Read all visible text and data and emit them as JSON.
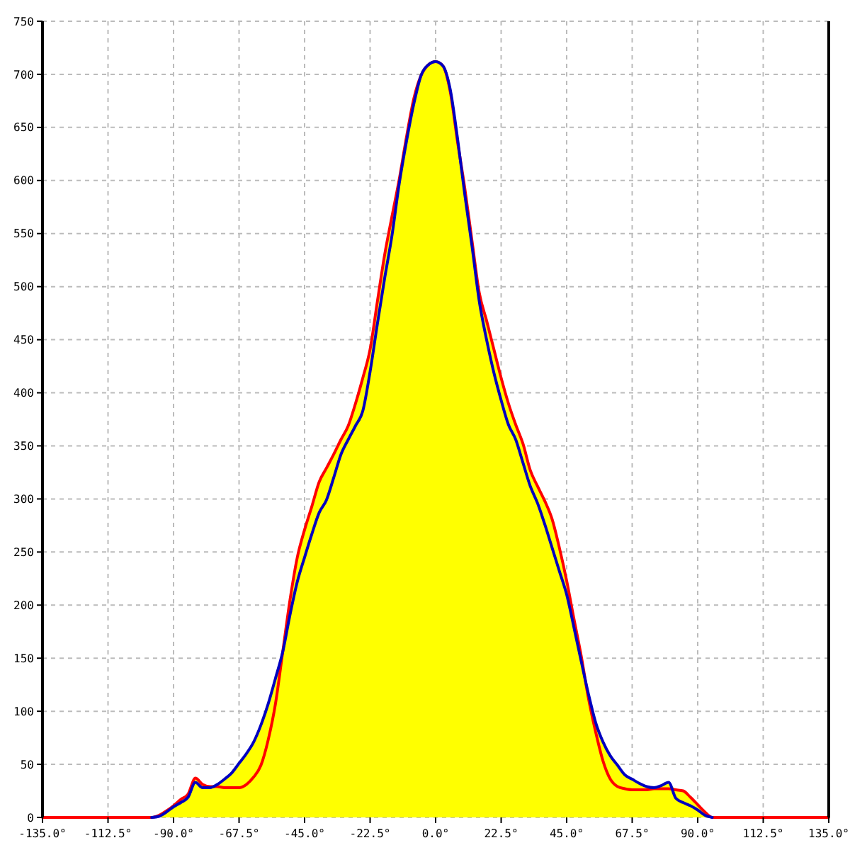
{
  "chart_data": {
    "type": "line",
    "xlim": [
      -135,
      135
    ],
    "ylim": [
      0,
      750
    ],
    "xticks": [
      {
        "value": -135,
        "label": "-135.0°"
      },
      {
        "value": -112.5,
        "label": "-112.5°"
      },
      {
        "value": -90,
        "label": "-90.0°"
      },
      {
        "value": -67.5,
        "label": "-67.5°"
      },
      {
        "value": -45,
        "label": "-45.0°"
      },
      {
        "value": -22.5,
        "label": "-22.5°"
      },
      {
        "value": 0,
        "label": "0.0°"
      },
      {
        "value": 22.5,
        "label": "22.5°"
      },
      {
        "value": 45,
        "label": "45.0°"
      },
      {
        "value": 67.5,
        "label": "67.5°"
      },
      {
        "value": 90,
        "label": "90.0°"
      },
      {
        "value": 112.5,
        "label": "112.5°"
      },
      {
        "value": 135,
        "label": "135.0°"
      }
    ],
    "yticks": [
      0,
      50,
      100,
      150,
      200,
      250,
      300,
      350,
      400,
      450,
      500,
      550,
      600,
      650,
      700,
      750
    ],
    "grid": true,
    "marker": "none",
    "line_style": "solid",
    "series": [
      {
        "color": "#ff0000",
        "x": [
          -135,
          -97.5,
          -95,
          -92.5,
          -90,
          -87.5,
          -85,
          -82.5,
          -80,
          -77.5,
          -75,
          -72.5,
          -70,
          -67.5,
          -65,
          -62.5,
          -60,
          -57.5,
          -55,
          -52.5,
          -50,
          -47.5,
          -45,
          -42.5,
          -40,
          -37.5,
          -35,
          -32.5,
          -30,
          -27.5,
          -25,
          -22.5,
          -20,
          -17.5,
          -15,
          -12.5,
          -10,
          -7.5,
          -5,
          -2.5,
          0,
          2.5,
          5,
          7.5,
          10,
          12.5,
          15,
          17.5,
          20,
          22.5,
          25,
          27.5,
          30,
          32.5,
          35,
          37.5,
          40,
          42.5,
          45,
          47.5,
          50,
          52.5,
          55,
          57.5,
          60,
          62.5,
          65,
          67.5,
          70,
          72.5,
          75,
          77.5,
          80,
          82.5,
          85,
          87.5,
          90,
          92.5,
          95,
          135
        ],
        "values": [
          0,
          0,
          2,
          6,
          11,
          17,
          22,
          37,
          31,
          29,
          29,
          28,
          28,
          28,
          31,
          38,
          49,
          73,
          107,
          156,
          205,
          245,
          271,
          293,
          316,
          329,
          342,
          356,
          369,
          390,
          414,
          441,
          486,
          530,
          566,
          601,
          641,
          677,
          699,
          709,
          712,
          708,
          684,
          637,
          593,
          543,
          494,
          468,
          441,
          414,
          390,
          370,
          352,
          327,
          312,
          298,
          281,
          254,
          223,
          187,
          152,
          112,
          80,
          53,
          36,
          29,
          27,
          26,
          26,
          26,
          27,
          27,
          27,
          26,
          25,
          19,
          12,
          5,
          0,
          0
        ]
      },
      {
        "color": "#0000c0",
        "x": [
          -97.5,
          -95,
          -92.5,
          -90,
          -87.5,
          -85,
          -82.5,
          -80,
          -77.5,
          -75,
          -72.5,
          -70,
          -67.5,
          -65,
          -62.5,
          -60,
          -57.5,
          -55,
          -52.5,
          -50,
          -47.5,
          -45,
          -42.5,
          -40,
          -37.5,
          -35,
          -32.5,
          -30,
          -27.5,
          -25,
          -22.5,
          -20,
          -17.5,
          -15,
          -12.5,
          -10,
          -7.5,
          -5,
          -2.5,
          0,
          2.5,
          5,
          7.5,
          10,
          12.5,
          15,
          17.5,
          20,
          22.5,
          25,
          27.5,
          30,
          32.5,
          35,
          37.5,
          40,
          42.5,
          45,
          47.5,
          50,
          52.5,
          55,
          57.5,
          60,
          62.5,
          65,
          67.5,
          70,
          72.5,
          75,
          77.5,
          80,
          82.5,
          85,
          87.5,
          90,
          92.5,
          95
        ],
        "values": [
          0,
          1,
          5,
          10,
          14,
          19,
          33,
          28,
          28,
          31,
          36,
          42,
          51,
          60,
          71,
          87,
          107,
          131,
          156,
          191,
          222,
          245,
          267,
          287,
          299,
          320,
          342,
          356,
          369,
          383,
          420,
          465,
          508,
          548,
          597,
          637,
          672,
          699,
          709,
          712,
          708,
          686,
          640,
          587,
          538,
          486,
          450,
          419,
          393,
          370,
          356,
          334,
          312,
          296,
          276,
          254,
          232,
          210,
          179,
          147,
          116,
          89,
          71,
          58,
          49,
          40,
          36,
          32,
          29,
          28,
          30,
          33,
          18,
          14,
          11,
          7,
          2,
          0
        ]
      },
      {
        "type": "area",
        "color": "#ffff00",
        "x": [
          -100,
          -97.5,
          -95,
          -92.5,
          -90,
          -87.5,
          -85,
          -82.5,
          -80,
          -77.5,
          -75,
          -72.5,
          -70,
          -67.5,
          -65,
          -62.5,
          -60,
          -57.5,
          -55,
          -52.5,
          -50,
          -47.5,
          -45,
          -42.5,
          -40,
          -37.5,
          -35,
          -32.5,
          -30,
          -27.5,
          -25,
          -22.5,
          -20,
          -17.5,
          -15,
          -12.5,
          -10,
          -7.5,
          -5,
          -2.5,
          0,
          2.5,
          5,
          7.5,
          10,
          12.5,
          15,
          17.5,
          20,
          22.5,
          25,
          27.5,
          30,
          32.5,
          35,
          37.5,
          40,
          42.5,
          45,
          47.5,
          50,
          52.5,
          55,
          57.5,
          60,
          62.5,
          65,
          67.5,
          70,
          72.5,
          75,
          77.5,
          80,
          82.5,
          85,
          87.5,
          90,
          92.5,
          95,
          97.5
        ],
        "values": [
          0,
          0,
          2,
          6,
          11,
          17,
          22,
          37,
          31,
          29,
          31,
          36,
          42,
          51,
          60,
          71,
          87,
          107,
          131,
          156,
          205,
          245,
          271,
          293,
          316,
          329,
          342,
          356,
          369,
          390,
          414,
          441,
          486,
          530,
          566,
          601,
          641,
          677,
          699,
          709,
          712,
          708,
          686,
          640,
          593,
          543,
          494,
          468,
          441,
          414,
          390,
          370,
          352,
          327,
          312,
          298,
          281,
          254,
          223,
          187,
          152,
          116,
          89,
          71,
          58,
          49,
          40,
          36,
          32,
          29,
          28,
          30,
          33,
          26,
          25,
          19,
          12,
          5,
          0,
          0
        ]
      }
    ]
  }
}
